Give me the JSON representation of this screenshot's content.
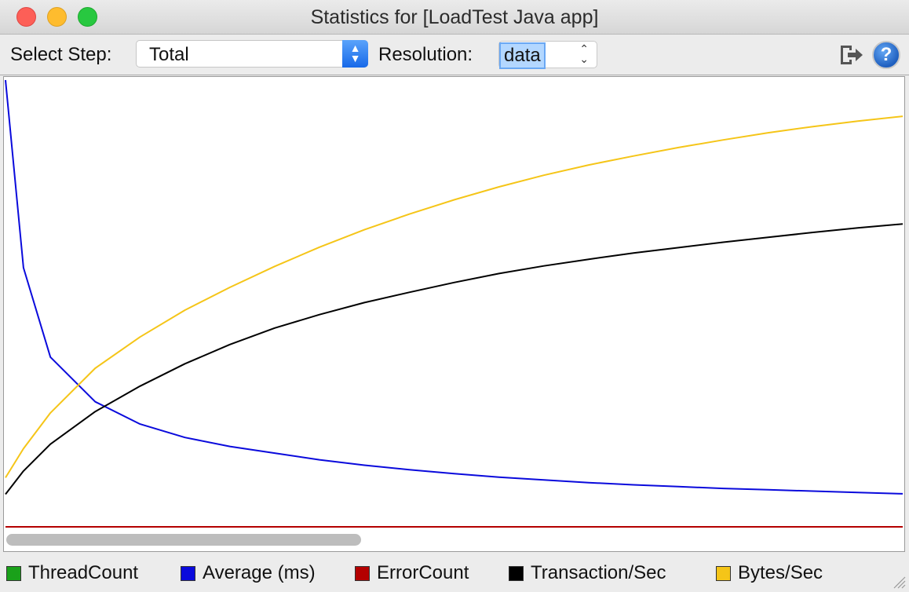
{
  "window": {
    "title": "Statistics for [LoadTest Java app]"
  },
  "toolbar": {
    "select_step_label": "Select Step:",
    "select_step_value": "Total",
    "resolution_label": "Resolution:",
    "resolution_value": "data"
  },
  "icons": {
    "export": "export-icon",
    "help": "help-icon",
    "help_glyph": "?"
  },
  "legend": [
    {
      "name": "ThreadCount",
      "color": "#1aa11a"
    },
    {
      "name": "Average (ms)",
      "color": "#0a0adc"
    },
    {
      "name": "ErrorCount",
      "color": "#b40000"
    },
    {
      "name": "Transaction/Sec",
      "color": "#000000"
    },
    {
      "name": "Bytes/Sec",
      "color": "#f5c518"
    }
  ],
  "chart_data": {
    "type": "line",
    "title": "",
    "xlabel": "",
    "ylabel": "",
    "grid": false,
    "legend_position": "bottom",
    "x": [
      0,
      2,
      5,
      10,
      15,
      20,
      25,
      30,
      35,
      40,
      45,
      50,
      55,
      60,
      65,
      70,
      75,
      80,
      85,
      90,
      95,
      100
    ],
    "ylim": [
      0,
      100
    ],
    "series": [
      {
        "name": "Average (ms)",
        "color": "#0a0adc",
        "values": [
          100,
          58,
          38,
          28,
          23,
          20,
          18,
          16.5,
          15,
          13.8,
          12.8,
          11.9,
          11.1,
          10.5,
          9.9,
          9.4,
          9.0,
          8.6,
          8.3,
          8.0,
          7.7,
          7.4
        ]
      },
      {
        "name": "ErrorCount",
        "color": "#b40000",
        "values": [
          0,
          0,
          0,
          0,
          0,
          0,
          0,
          0,
          0,
          0,
          0,
          0,
          0,
          0,
          0,
          0,
          0,
          0,
          0,
          0,
          0,
          0
        ]
      },
      {
        "name": "Transaction/Sec",
        "color": "#000000",
        "values": [
          7.3,
          12.5,
          18.5,
          25.8,
          31.5,
          36.5,
          40.8,
          44.5,
          47.5,
          50.2,
          52.5,
          54.7,
          56.7,
          58.4,
          59.9,
          61.3,
          62.5,
          63.7,
          64.8,
          65.9,
          66.9,
          67.8
        ]
      },
      {
        "name": "Bytes/Sec",
        "color": "#f5c518",
        "values": [
          11,
          17.5,
          25.5,
          35.5,
          42.5,
          48.5,
          53.6,
          58.3,
          62.6,
          66.5,
          70,
          73.2,
          76.1,
          78.7,
          81,
          83,
          84.9,
          86.6,
          88.2,
          89.6,
          90.8,
          91.9
        ]
      }
    ]
  }
}
